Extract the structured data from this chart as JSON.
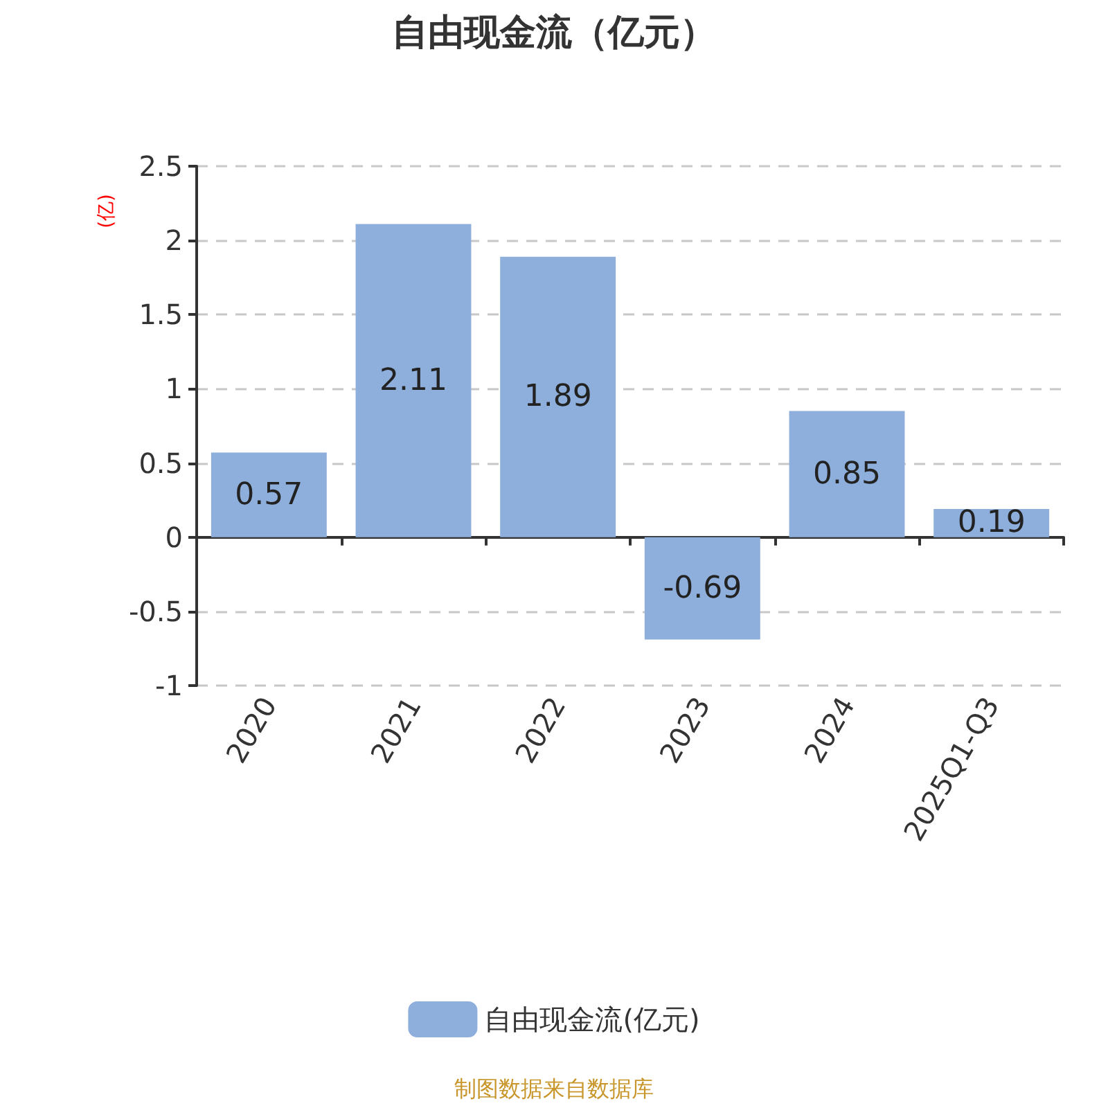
{
  "chart_data": {
    "type": "bar",
    "title": "自由现金流（亿元）",
    "ylabel": "(亿)",
    "categories": [
      "2020",
      "2021",
      "2022",
      "2023",
      "2024",
      "2025Q1-Q3"
    ],
    "series": [
      {
        "name": "自由现金流(亿元)",
        "color": "#8eaedb",
        "values": [
          0.57,
          2.11,
          1.89,
          -0.69,
          0.85,
          0.19
        ]
      }
    ],
    "ylim": [
      -1,
      2.5
    ],
    "yticks": [
      -1,
      -0.5,
      0,
      0.5,
      1,
      1.5,
      2,
      2.5
    ],
    "grid": "y",
    "legend": "bottom",
    "data_labels": true,
    "annotations": [
      "制图数据来自数据库"
    ]
  }
}
